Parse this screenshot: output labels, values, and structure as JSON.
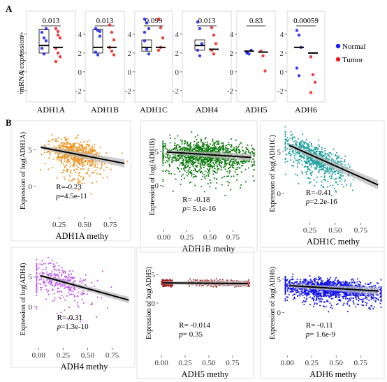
{
  "panel_labels": {
    "a": "A",
    "b": "B"
  },
  "panelA": {
    "ylabel": "mRNA expression",
    "yticks": [
      -2,
      0,
      2,
      4
    ],
    "ylim": [
      -3.2,
      6.3
    ],
    "legend": [
      {
        "label": "Normal",
        "color": "#1c1cf0"
      },
      {
        "label": "Tumor",
        "color": "#ee1c1c"
      }
    ],
    "colors": {
      "normal": "#1c1cf0",
      "tumor": "#ee1c1c"
    }
  },
  "panelB": {
    "line_color": "#000000",
    "ci_color": "#bcbcbc"
  },
  "chart_data": [
    {
      "type": "box",
      "panel": "A",
      "categories": [
        "ADH1A",
        "ADH1B",
        "ADH1C",
        "ADH4",
        "ADH5",
        "ADH6"
      ],
      "pvalues": [
        "0.013",
        "0.013",
        "0.099",
        "0.013",
        "0.83",
        "0.00059"
      ],
      "series": [
        {
          "name": "Normal",
          "values": [
            [
              4.2,
              3.6,
              3.3,
              2.5,
              1.9,
              4.6
            ],
            [
              4.6,
              4.4,
              3.8,
              2.1,
              1.8,
              4.3
            ],
            [
              5.6,
              5.2,
              4.6,
              4.2,
              2.4,
              1.9,
              3.3
            ],
            [
              5.3,
              4.6,
              3.0,
              2.3,
              1.7
            ],
            [
              2.1,
              1.9,
              2.3,
              2.0
            ],
            [
              4.4,
              3.9,
              2.6,
              0.4,
              -0.4
            ]
          ],
          "medians": [
            2.8,
            2.6,
            2.6,
            2.8,
            2.2,
            2.6
          ],
          "box": [
            [
              2.0,
              4.5
            ],
            [
              2.0,
              4.5
            ],
            [
              2.2,
              3.4
            ],
            [
              2.3,
              3.4
            ],
            null,
            null
          ]
        },
        {
          "name": "Tumor",
          "values": [
            [
              4.6,
              3.9,
              3.6,
              2.5,
              2.0,
              1.6,
              1.1,
              4.3
            ],
            [
              5.0,
              4.2,
              3.4,
              2.6,
              2.2,
              1.8
            ],
            [
              5.6,
              4.7,
              3.6,
              2.3,
              2.6
            ],
            [
              4.7,
              3.9,
              3.0,
              2.3,
              1.9
            ],
            [
              2.2,
              1.7,
              0.1
            ],
            [
              1.6,
              -0.3,
              -1.1,
              -2.2
            ]
          ],
          "medians": [
            2.6,
            2.6,
            2.6,
            2.4,
            2.1,
            2.0
          ],
          "box": [
            null,
            null,
            null,
            null,
            null,
            null
          ]
        }
      ]
    },
    {
      "type": "scatter",
      "panel": "B1",
      "gene": "ADH1A",
      "xlabel": "ADH1A methy",
      "ylabel": "Expression of log(ADH1A)",
      "xticks": [
        0.25,
        0.5,
        0.75
      ],
      "yticks": [
        0,
        5
      ],
      "xlim": [
        0.02,
        0.93
      ],
      "ylim": [
        -4.2,
        8.5
      ],
      "color": "#ef8e16",
      "n": 650,
      "x_center": 0.42,
      "x_spread": 0.13,
      "noise": 1.6,
      "fit": {
        "slope": -2.69,
        "intercept": 5.55
      },
      "stats": {
        "r": "R=-0.23",
        "p_label": "p",
        "p": "=4.5e-11"
      }
    },
    {
      "type": "scatter",
      "panel": "B2",
      "gene": "ADH1B",
      "xlabel": "ADH1B methy",
      "ylabel": "Expression of log(ADH1B)",
      "xticks": [
        0.0,
        0.25,
        0.5,
        0.75
      ],
      "yticks": [
        0,
        5
      ],
      "xlim": [
        -0.02,
        0.99
      ],
      "ylim": [
        -6.5,
        9.0
      ],
      "color": "#0d7a0d",
      "n": 1300,
      "x_center": 0.45,
      "x_spread": 0.24,
      "noise": 1.7,
      "fit": {
        "slope": -0.85,
        "intercept": 4.95
      },
      "stats": {
        "r": "R= -0.18",
        "p_label": "p",
        "p": "= 5.1e-16"
      }
    },
    {
      "type": "scatter",
      "panel": "B3",
      "gene": "ADH1C",
      "xlabel": "ADH1C methy",
      "ylabel": "Expression of log(ADH1C)",
      "xticks": [
        0.25,
        0.5,
        0.75
      ],
      "yticks": [
        0,
        5
      ],
      "xlim": [
        0.0,
        0.96
      ],
      "ylim": [
        -3.5,
        8.3
      ],
      "color": "#1a9e9c",
      "n": 750,
      "x_center": 0.3,
      "x_spread": 0.15,
      "noise": 1.3,
      "fit": {
        "slope": -5.45,
        "intercept": 6.05
      },
      "stats": {
        "r": "R=-0.41",
        "p_label": "p",
        "p": "=2.2e-16"
      }
    },
    {
      "type": "scatter",
      "panel": "B4",
      "gene": "ADH4",
      "xlabel": "ADH4 methy",
      "ylabel": "Expression of log(ADH4)",
      "xticks": [
        0.0,
        0.25,
        0.5,
        0.75
      ],
      "yticks": [
        0,
        5
      ],
      "xlim": [
        -0.03,
        0.96
      ],
      "ylim": [
        -6.8,
        9.3
      ],
      "color": "#bf4ff0",
      "n": 330,
      "x_center": 0.25,
      "x_spread": 0.18,
      "noise": 2.2,
      "fit": {
        "slope": -4.5,
        "intercept": 5.25
      },
      "stats": {
        "r": "R=-0.31",
        "p_label": "p",
        "p": "=1.3e-10"
      }
    },
    {
      "type": "scatter",
      "panel": "B5",
      "gene": "ADH5",
      "xlabel": "ADH5 methy",
      "ylabel": "Expression of log(ADH5)",
      "xticks": [
        0.0,
        0.25,
        0.5,
        0.75
      ],
      "yticks": [
        0,
        5
      ],
      "xlim": [
        -0.03,
        0.95
      ],
      "ylim": [
        -9.2,
        9.2
      ],
      "color": "#a52222",
      "n": 520,
      "x_center": 0.4,
      "x_spread": 0.3,
      "noise": 0.5,
      "fit": {
        "slope": -0.12,
        "intercept": 3.55
      },
      "stats": {
        "r": "R= -0.014",
        "p_label": "p",
        "p": "= 0.35"
      }
    },
    {
      "type": "scatter",
      "panel": "B6",
      "gene": "ADH6",
      "xlabel": "ADH6 methy",
      "ylabel": "Expression of log(ADH6)",
      "xticks": [
        0.0,
        0.25,
        0.5,
        0.75
      ],
      "yticks": [
        0,
        5
      ],
      "xlim": [
        -0.03,
        0.97
      ],
      "ylim": [
        -6.5,
        9.3
      ],
      "color": "#1515e8",
      "n": 1500,
      "x_center": 0.45,
      "x_spread": 0.27,
      "noise": 1.1,
      "fit": {
        "slope": -0.9,
        "intercept": 4.05
      },
      "stats": {
        "r": "R= -0.11",
        "p_label": "p",
        "p": "= 1.6e-9"
      }
    }
  ]
}
